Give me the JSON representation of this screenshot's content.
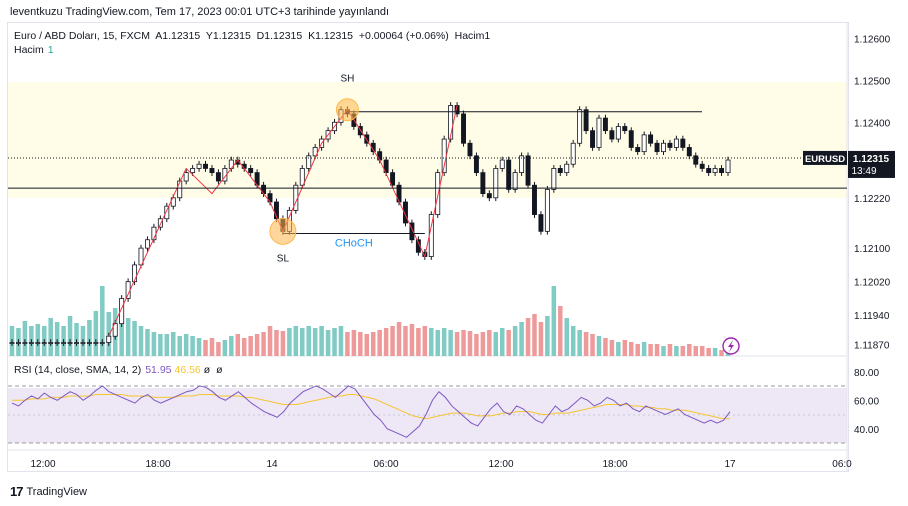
{
  "publish_line": "leventkuzu TradingView.com, Tem 17, 2023 00:01 UTC+3 tarihinde yayınlandı",
  "legend": {
    "symbol": "Euro / ABD Doları, 15, FXCM",
    "a": "A1.12315",
    "y": "Y1.12315",
    "d": "D1.12315",
    "k": "K1.12315",
    "change": "+0.00064 (+0.06%)",
    "hacim": "Hacim1",
    "volume_label": "Hacim",
    "volume_value": "1"
  },
  "rsi_legend": {
    "label": "RSI (14, close, SMA, 14, 2)",
    "rsi": "51.95",
    "sma": "46.56",
    "x1": "ø",
    "x2": "ø"
  },
  "symbol_tag": "EURUSD",
  "last_price": "1.12315",
  "countdown": "13:49",
  "footer_brand": "TradingView",
  "colors": {
    "up": "#26a69a",
    "down": "#ef5350",
    "candle": "#131722",
    "zigzag": "#f23645",
    "rsi": "#7e57c2",
    "rsi_ma": "#f7c52e",
    "choch": "#2196f3",
    "highlight": "#fffde7",
    "rsi_band": "#ede7f6"
  },
  "chart_data": {
    "type": "candlestick",
    "price_ticks": [
      "1.12600",
      "1.12500",
      "1.12400",
      "1.12315",
      "1.12220",
      "1.12100",
      "1.12020",
      "1.11940",
      "1.11870"
    ],
    "time_ticks": [
      "12:00",
      "18:00",
      "14",
      "06:00",
      "12:00",
      "18:00",
      "17",
      "06:0"
    ],
    "rsi_ticks": [
      "80.00",
      "60.00",
      "40.00"
    ],
    "rsi_bands": [
      70,
      30
    ],
    "ylim": [
      1.1185,
      1.1262
    ],
    "annotations": {
      "swing_high": "SH",
      "swing_low": "SL",
      "choch": "CHoCH"
    },
    "levels": {
      "swing_high": 1.12425,
      "swing_low": 1.12135,
      "support": 1.12243,
      "last": 1.12315
    },
    "zigzag": [
      {
        "t": 15,
        "p": 1.1189
      },
      {
        "t": 27,
        "p": 1.1229
      },
      {
        "t": 31,
        "p": 1.1223
      },
      {
        "t": 35,
        "p": 1.1231
      },
      {
        "t": 40,
        "p": 1.1221
      },
      {
        "t": 42,
        "p": 1.1214
      },
      {
        "t": 48,
        "p": 1.1235
      },
      {
        "t": 52,
        "p": 1.1243
      },
      {
        "t": 57,
        "p": 1.1231
      },
      {
        "t": 64,
        "p": 1.1208
      },
      {
        "t": 69,
        "p": 1.1244
      }
    ],
    "candles_close": [
      1.11875,
      1.11875,
      1.11875,
      1.11875,
      1.11875,
      1.11875,
      1.11875,
      1.11875,
      1.11875,
      1.11875,
      1.11875,
      1.11875,
      1.11875,
      1.11875,
      1.11875,
      1.1189,
      1.1192,
      1.1198,
      1.1202,
      1.1206,
      1.121,
      1.1212,
      1.1215,
      1.1217,
      1.122,
      1.1222,
      1.1226,
      1.1228,
      1.1229,
      1.123,
      1.1229,
      1.1228,
      1.1226,
      1.1229,
      1.1231,
      1.123,
      1.1229,
      1.1228,
      1.1225,
      1.1223,
      1.1221,
      1.1217,
      1.1214,
      1.1219,
      1.1225,
      1.1229,
      1.1232,
      1.1234,
      1.1236,
      1.1238,
      1.124,
      1.1243,
      1.1242,
      1.1239,
      1.1237,
      1.1235,
      1.1233,
      1.1231,
      1.1228,
      1.1225,
      1.1221,
      1.1216,
      1.1212,
      1.1209,
      1.1208,
      1.1218,
      1.1228,
      1.1236,
      1.1244,
      1.1242,
      1.1235,
      1.1232,
      1.1228,
      1.1223,
      1.1222,
      1.1229,
      1.1231,
      1.1224,
      1.1228,
      1.1232,
      1.1225,
      1.1218,
      1.1214,
      1.1224,
      1.1229,
      1.1228,
      1.123,
      1.1235,
      1.1243,
      1.1238,
      1.1234,
      1.1241,
      1.1238,
      1.1236,
      1.1239,
      1.1238,
      1.1234,
      1.1233,
      1.1237,
      1.1235,
      1.1233,
      1.1235,
      1.1234,
      1.1236,
      1.1234,
      1.1232,
      1.123,
      1.1229,
      1.1228,
      1.1229,
      1.1228,
      1.1231
    ],
    "volumes": [
      0.3,
      0.28,
      0.35,
      0.3,
      0.32,
      0.3,
      0.38,
      0.34,
      0.3,
      0.4,
      0.33,
      0.3,
      0.36,
      0.45,
      0.7,
      0.44,
      0.48,
      0.42,
      0.38,
      0.35,
      0.3,
      0.27,
      0.24,
      0.22,
      0.22,
      0.24,
      0.2,
      0.22,
      0.2,
      0.18,
      0.16,
      0.18,
      0.14,
      0.16,
      0.2,
      0.22,
      0.18,
      0.2,
      0.22,
      0.24,
      0.3,
      0.26,
      0.25,
      0.28,
      0.3,
      0.28,
      0.3,
      0.28,
      0.3,
      0.26,
      0.28,
      0.3,
      0.24,
      0.26,
      0.24,
      0.22,
      0.24,
      0.26,
      0.28,
      0.3,
      0.34,
      0.3,
      0.32,
      0.28,
      0.3,
      0.28,
      0.26,
      0.28,
      0.26,
      0.24,
      0.26,
      0.25,
      0.22,
      0.24,
      0.26,
      0.24,
      0.28,
      0.26,
      0.3,
      0.34,
      0.38,
      0.42,
      0.34,
      0.4,
      0.7,
      0.5,
      0.38,
      0.3,
      0.26,
      0.24,
      0.22,
      0.2,
      0.18,
      0.16,
      0.14,
      0.16,
      0.14,
      0.12,
      0.14,
      0.12,
      0.12,
      0.1,
      0.12,
      0.1,
      0.1,
      0.12,
      0.1,
      0.1,
      0.08,
      0.08,
      0.06,
      0.05
    ],
    "rsi": [
      58,
      56,
      60,
      63,
      61,
      65,
      62,
      60,
      63,
      66,
      64,
      60,
      63,
      67,
      70,
      66,
      64,
      62,
      60,
      58,
      62,
      64,
      60,
      58,
      60,
      62,
      64,
      66,
      67,
      70,
      69,
      66,
      62,
      60,
      63,
      66,
      62,
      58,
      55,
      52,
      50,
      48,
      52,
      58,
      62,
      66,
      68,
      70,
      68,
      65,
      62,
      66,
      70,
      68,
      62,
      56,
      50,
      46,
      40,
      38,
      36,
      34,
      38,
      42,
      50,
      60,
      66,
      62,
      56,
      52,
      48,
      44,
      42,
      48,
      54,
      58,
      52,
      50,
      56,
      54,
      50,
      46,
      44,
      50,
      56,
      52,
      54,
      58,
      62,
      60,
      56,
      58,
      62,
      60,
      56,
      58,
      54,
      52,
      56,
      54,
      52,
      50,
      52,
      54,
      50,
      48,
      46,
      44,
      46,
      44,
      46,
      52
    ],
    "rsi_ma": [
      60,
      60,
      60,
      61,
      61,
      61,
      62,
      62,
      62,
      63,
      63,
      63,
      63,
      64,
      64,
      64,
      64,
      64,
      63,
      63,
      63,
      63,
      62,
      62,
      62,
      62,
      63,
      63,
      63,
      64,
      64,
      64,
      63,
      63,
      63,
      63,
      62,
      62,
      61,
      60,
      59,
      58,
      57,
      57,
      57,
      58,
      59,
      60,
      61,
      62,
      63,
      63,
      64,
      64,
      63,
      62,
      61,
      59,
      57,
      55,
      53,
      51,
      49,
      48,
      47,
      48,
      49,
      50,
      51,
      51,
      51,
      50,
      49,
      49,
      49,
      50,
      51,
      51,
      52,
      52,
      52,
      51,
      50,
      50,
      51,
      51,
      51,
      52,
      53,
      54,
      55,
      56,
      57,
      57,
      57,
      57,
      56,
      56,
      55,
      55,
      54,
      54,
      53,
      53,
      53,
      52,
      51,
      50,
      49,
      48,
      47,
      47
    ]
  }
}
